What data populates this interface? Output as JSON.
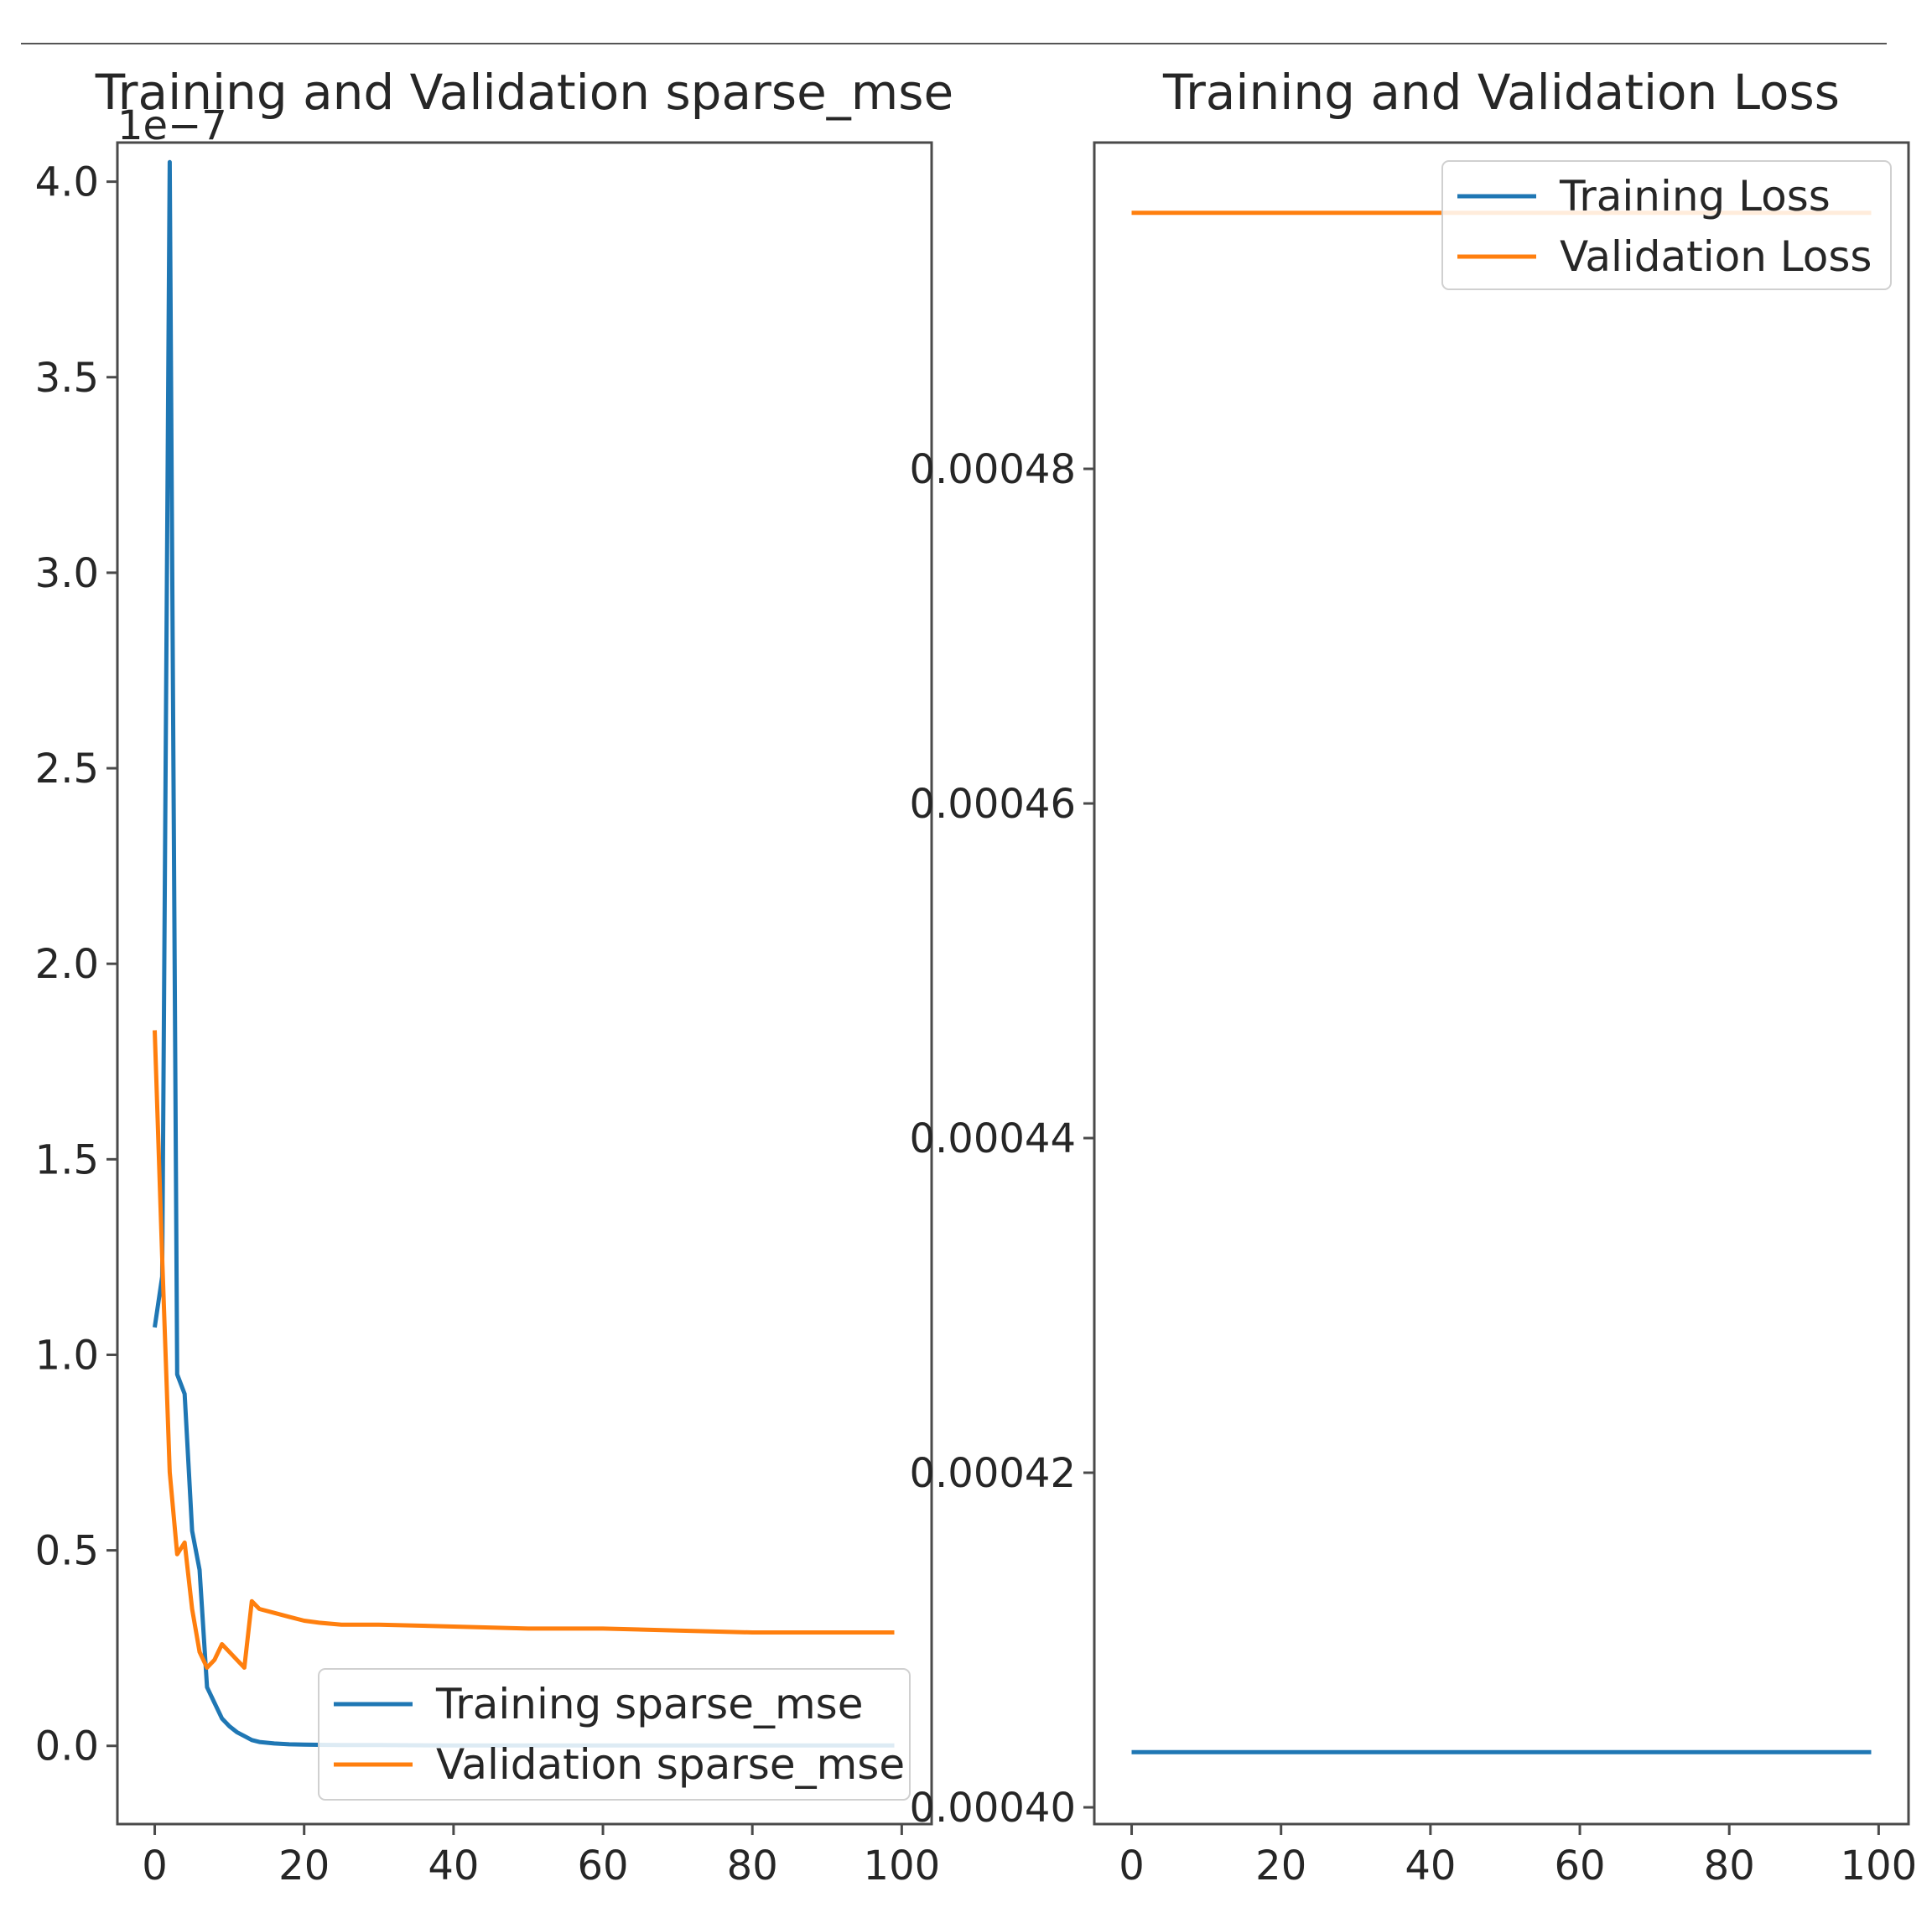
{
  "chart_data": [
    {
      "type": "line",
      "title": "Training and Validation sparse_mse",
      "xlabel": "",
      "ylabel": "",
      "offset_text": "1e−7",
      "xlim": [
        -5,
        104
      ],
      "ylim": [
        -0.2,
        4.1
      ],
      "xticks": [
        0,
        20,
        40,
        60,
        80,
        100
      ],
      "xtick_labels": [
        "0",
        "20",
        "40",
        "60",
        "80",
        "100"
      ],
      "yticks": [
        0.0,
        0.5,
        1.0,
        1.5,
        2.0,
        2.5,
        3.0,
        3.5,
        4.0
      ],
      "ytick_labels": [
        "0.0",
        "0.5",
        "1.0",
        "1.5",
        "2.0",
        "2.5",
        "3.0",
        "3.5",
        "4.0"
      ],
      "legend_position": "lower-right",
      "grid": false,
      "series": [
        {
          "name": "Training sparse_mse",
          "color": "#1f77b4",
          "x": [
            0,
            1,
            2,
            3,
            4,
            5,
            6,
            7,
            8,
            9,
            10,
            11,
            12,
            13,
            14,
            15,
            16,
            18,
            20,
            25,
            30,
            40,
            50,
            60,
            70,
            80,
            90,
            99
          ],
          "y": [
            1.07,
            1.2,
            4.05,
            0.95,
            0.9,
            0.55,
            0.45,
            0.15,
            0.11,
            0.07,
            0.05,
            0.035,
            0.025,
            0.015,
            0.01,
            0.008,
            0.006,
            0.004,
            0.003,
            0.002,
            0.002,
            0.001,
            0.001,
            0.001,
            0.001,
            0.001,
            0.001,
            0.001
          ]
        },
        {
          "name": "Validation sparse_mse",
          "color": "#ff7f0e",
          "x": [
            0,
            1,
            2,
            3,
            4,
            5,
            6,
            7,
            8,
            9,
            10,
            11,
            12,
            13,
            14,
            16,
            18,
            20,
            22,
            25,
            30,
            40,
            50,
            60,
            70,
            80,
            90,
            99
          ],
          "y": [
            1.83,
            1.25,
            0.7,
            0.49,
            0.52,
            0.35,
            0.24,
            0.2,
            0.22,
            0.26,
            0.24,
            0.22,
            0.2,
            0.37,
            0.35,
            0.34,
            0.33,
            0.32,
            0.315,
            0.31,
            0.31,
            0.305,
            0.3,
            0.3,
            0.295,
            0.29,
            0.29,
            0.29
          ]
        }
      ]
    },
    {
      "type": "line",
      "title": "Training and Validation Loss",
      "xlabel": "",
      "ylabel": "",
      "xlim": [
        -5,
        104
      ],
      "ylim": [
        0.000399,
        0.0004995
      ],
      "xticks": [
        0,
        20,
        40,
        60,
        80,
        100
      ],
      "xtick_labels": [
        "0",
        "20",
        "40",
        "60",
        "80",
        "100"
      ],
      "yticks": [
        0.0004,
        0.00042,
        0.00044,
        0.00046,
        0.00048
      ],
      "ytick_labels": [
        "0.00040",
        "0.00042",
        "0.00044",
        "0.00046",
        "0.00048"
      ],
      "legend_position": "upper-right",
      "grid": false,
      "series": [
        {
          "name": "Training Loss",
          "color": "#1f77b4",
          "x": [
            0,
            99
          ],
          "y": [
            0.0004033,
            0.0004033
          ]
        },
        {
          "name": "Validation Loss",
          "color": "#ff7f0e",
          "x": [
            0,
            99
          ],
          "y": [
            0.0004953,
            0.0004953
          ]
        }
      ]
    }
  ]
}
